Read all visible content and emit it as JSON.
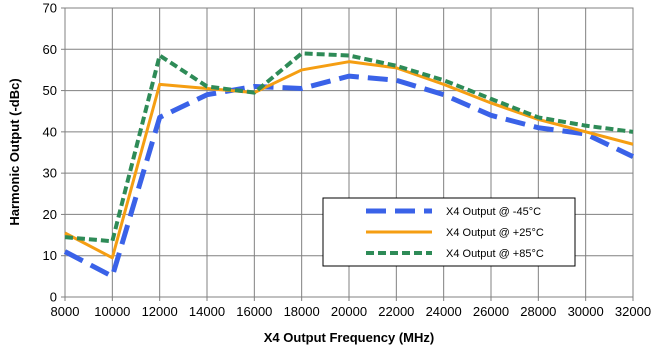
{
  "chart_data": {
    "type": "line",
    "title": "",
    "xlabel": "X4 Output Frequency (MHz)",
    "ylabel": "Harmonic Output (-dBc)",
    "xlim": [
      8000,
      32000
    ],
    "ylim": [
      0,
      70
    ],
    "xticks": [
      8000,
      10000,
      12000,
      14000,
      16000,
      18000,
      20000,
      22000,
      24000,
      26000,
      28000,
      30000,
      32000
    ],
    "yticks": [
      0,
      10,
      20,
      30,
      40,
      50,
      60,
      70
    ],
    "grid": true,
    "legend_position": "lower-right",
    "series": [
      {
        "name": "X4 Output @ -45°C",
        "color": "#3a62e8",
        "style": "long-dash",
        "x": [
          8000,
          10000,
          12000,
          14000,
          16000,
          18000,
          20000,
          22000,
          24000,
          26000,
          28000,
          30000,
          32000
        ],
        "y": [
          11,
          5,
          43.5,
          49,
          51,
          50.5,
          53.5,
          52.5,
          49,
          44,
          41,
          39.5,
          34
        ]
      },
      {
        "name": "X4 Output @ +25°C",
        "color": "#f59e12",
        "style": "solid",
        "x": [
          8000,
          10000,
          12000,
          14000,
          16000,
          18000,
          20000,
          22000,
          24000,
          26000,
          28000,
          30000,
          32000
        ],
        "y": [
          15.5,
          9.5,
          51.5,
          50.5,
          49.5,
          55,
          57,
          55.5,
          51.5,
          47,
          43,
          40,
          37
        ]
      },
      {
        "name": "X4 Output @ +85°C",
        "color": "#2e8b57",
        "style": "short-dash",
        "x": [
          8000,
          10000,
          12000,
          14000,
          16000,
          18000,
          20000,
          22000,
          24000,
          26000,
          28000,
          30000,
          32000
        ],
        "y": [
          14.5,
          13.5,
          58.5,
          51,
          49.5,
          59,
          58.5,
          56,
          52.5,
          48,
          43.5,
          41.5,
          40
        ]
      }
    ]
  }
}
